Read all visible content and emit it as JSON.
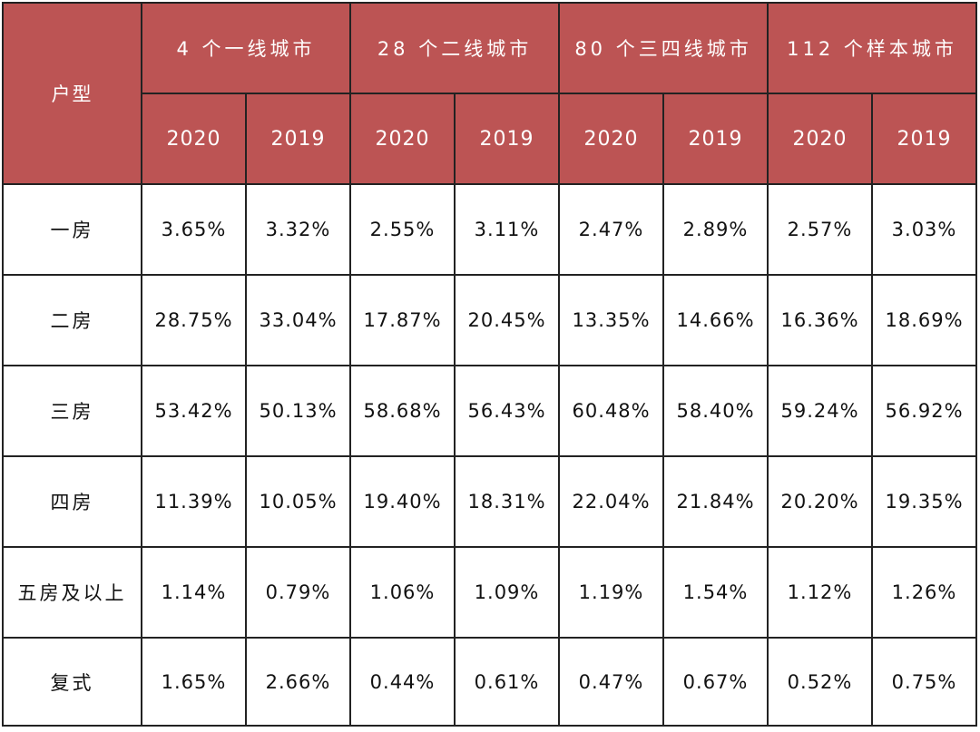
{
  "table": {
    "corner_label": "户型",
    "groups": [
      "4 个一线城市",
      "28 个二线城市",
      "80 个三四线城市",
      "112 个样本城市"
    ],
    "years": [
      "2020",
      "2019",
      "2020",
      "2019",
      "2020",
      "2019",
      "2020",
      "2019"
    ],
    "rows": [
      {
        "label": "一房",
        "values": [
          "3.65%",
          "3.32%",
          "2.55%",
          "3.11%",
          "2.47%",
          "2.89%",
          "2.57%",
          "3.03%"
        ]
      },
      {
        "label": "二房",
        "values": [
          "28.75%",
          "33.04%",
          "17.87%",
          "20.45%",
          "13.35%",
          "14.66%",
          "16.36%",
          "18.69%"
        ]
      },
      {
        "label": "三房",
        "values": [
          "53.42%",
          "50.13%",
          "58.68%",
          "56.43%",
          "60.48%",
          "58.40%",
          "59.24%",
          "56.92%"
        ]
      },
      {
        "label": "四房",
        "values": [
          "11.39%",
          "10.05%",
          "19.40%",
          "18.31%",
          "22.04%",
          "21.84%",
          "20.20%",
          "19.35%"
        ]
      },
      {
        "label": "五房及以上",
        "values": [
          "1.14%",
          "0.79%",
          "1.06%",
          "1.09%",
          "1.19%",
          "1.54%",
          "1.12%",
          "1.26%"
        ]
      },
      {
        "label": "复式",
        "values": [
          "1.65%",
          "2.66%",
          "0.44%",
          "0.61%",
          "0.47%",
          "0.67%",
          "0.52%",
          "0.75%"
        ]
      }
    ]
  },
  "colors": {
    "header_background": "#bc5454",
    "header_text": "#ffffff",
    "border": "#222222"
  }
}
